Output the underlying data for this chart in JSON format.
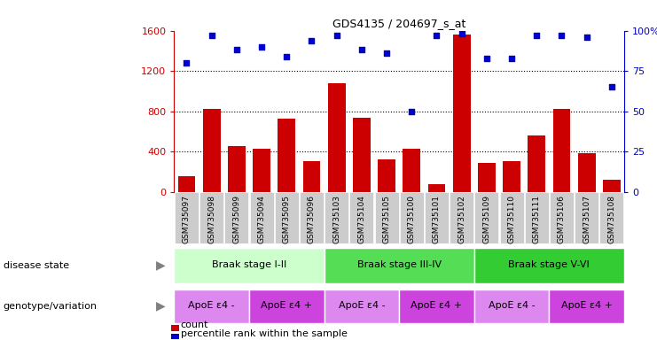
{
  "title": "GDS4135 / 204697_s_at",
  "samples": [
    "GSM735097",
    "GSM735098",
    "GSM735099",
    "GSM735094",
    "GSM735095",
    "GSM735096",
    "GSM735103",
    "GSM735104",
    "GSM735105",
    "GSM735100",
    "GSM735101",
    "GSM735102",
    "GSM735109",
    "GSM735110",
    "GSM735111",
    "GSM735106",
    "GSM735107",
    "GSM735108"
  ],
  "counts": [
    160,
    820,
    460,
    430,
    730,
    310,
    1080,
    740,
    320,
    430,
    80,
    1560,
    290,
    305,
    560,
    820,
    390,
    120
  ],
  "percentiles": [
    80,
    97,
    88,
    90,
    84,
    94,
    97,
    88,
    86,
    50,
    97,
    98,
    83,
    83,
    97,
    97,
    96,
    65
  ],
  "ylim_left": [
    0,
    1600
  ],
  "ylim_right": [
    0,
    100
  ],
  "yticks_left": [
    0,
    400,
    800,
    1200,
    1600
  ],
  "yticks_right": [
    0,
    25,
    50,
    75,
    100
  ],
  "bar_color": "#cc0000",
  "dot_color": "#0000cc",
  "disease_state_groups": [
    {
      "label": "Braak stage I-II",
      "start": 0,
      "end": 6,
      "color": "#ccffcc"
    },
    {
      "label": "Braak stage III-IV",
      "start": 6,
      "end": 12,
      "color": "#55dd55"
    },
    {
      "label": "Braak stage V-VI",
      "start": 12,
      "end": 18,
      "color": "#33cc33"
    }
  ],
  "genotype_groups": [
    {
      "label": "ApoE ε4 -",
      "start": 0,
      "end": 3,
      "color": "#dd88ee"
    },
    {
      "label": "ApoE ε4 +",
      "start": 3,
      "end": 6,
      "color": "#cc44dd"
    },
    {
      "label": "ApoE ε4 -",
      "start": 6,
      "end": 9,
      "color": "#dd88ee"
    },
    {
      "label": "ApoE ε4 +",
      "start": 9,
      "end": 12,
      "color": "#cc44dd"
    },
    {
      "label": "ApoE ε4 -",
      "start": 12,
      "end": 15,
      "color": "#dd88ee"
    },
    {
      "label": "ApoE ε4 +",
      "start": 15,
      "end": 18,
      "color": "#cc44dd"
    }
  ],
  "disease_state_label": "disease state",
  "genotype_label": "genotype/variation",
  "legend_count_label": "count",
  "legend_percentile_label": "percentile rank within the sample",
  "background_color": "#ffffff",
  "left_axis_color": "#cc0000",
  "right_axis_color": "#0000cc",
  "xtick_bg_color": "#cccccc",
  "dotline_yticks": [
    400,
    800,
    1200
  ]
}
